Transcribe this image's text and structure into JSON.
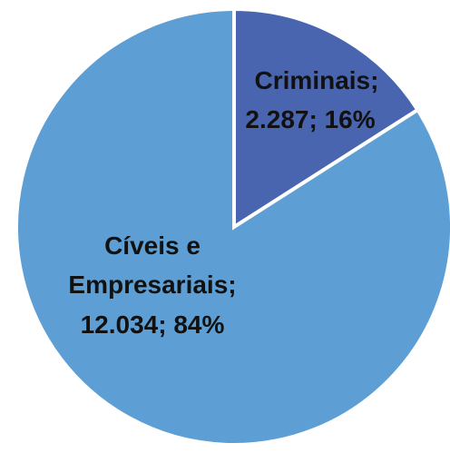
{
  "chart_data": {
    "type": "pie",
    "title": "",
    "slices": [
      {
        "name": "Criminais",
        "value_label": "2.287",
        "value": 2287,
        "percent_label": "16%",
        "color": "#4a65b0"
      },
      {
        "name": "Cíveis e Empresariais",
        "value_label": "12.034",
        "value": 12034,
        "percent_label": "84%",
        "color": "#5d9fd5"
      }
    ],
    "data_labels": {
      "criminais": {
        "line1": "Criminais;",
        "line2": "2.287; 16%"
      },
      "civeis": {
        "line1": "Cíveis e",
        "line2": "Empresariais;",
        "line3": "12.034; 84%"
      }
    }
  }
}
